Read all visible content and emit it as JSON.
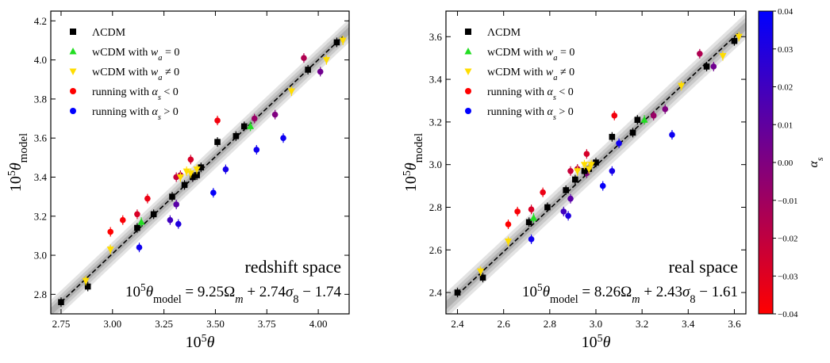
{
  "chart_data": [
    {
      "type": "scatter",
      "panel": "left",
      "space_label": "redshift space",
      "xlabel": "10⁵θ",
      "ylabel": "10⁵θ_model",
      "xlim": [
        2.7,
        4.15
      ],
      "ylim": [
        2.7,
        4.25
      ],
      "xticks": [
        2.75,
        3.0,
        3.25,
        3.5,
        3.75,
        4.0
      ],
      "xtick_labels": [
        "2.75",
        "3.00",
        "3.25",
        "3.50",
        "3.75",
        "4.00"
      ],
      "yticks": [
        2.8,
        3.0,
        3.2,
        3.4,
        3.6,
        3.8,
        4.0,
        4.2
      ],
      "ytick_labels": [
        "2.8",
        "3.0",
        "3.2",
        "3.4",
        "3.6",
        "3.8",
        "4.0",
        "4.2"
      ],
      "fit": {
        "label": "10⁵θ_model = 9.25Ω_m + 2.74σ₈ − 1.74",
        "line": [
          [
            2.75,
            2.76
          ],
          [
            4.12,
            4.12
          ]
        ],
        "band_halfwidths": [
          0.02,
          0.04,
          0.06
        ]
      },
      "series": [
        {
          "name": "ΛCDM",
          "marker": "square",
          "color": "#000000",
          "x": [
            2.75,
            2.88,
            3.12,
            3.2,
            3.29,
            3.35,
            3.39,
            3.41,
            3.43,
            3.51,
            3.6,
            3.64,
            3.95,
            4.09
          ],
          "y": [
            2.76,
            2.84,
            3.14,
            3.21,
            3.3,
            3.36,
            3.4,
            3.41,
            3.45,
            3.58,
            3.61,
            3.66,
            3.95,
            4.09
          ]
        },
        {
          "name": "wCDM with w_a = 0",
          "marker": "triangle-up",
          "color": "#22dd22",
          "x": [
            3.14,
            3.67
          ],
          "y": [
            3.17,
            3.66
          ]
        },
        {
          "name": "wCDM with w_a ≠ 0",
          "marker": "triangle-down",
          "color": "#ffdd00",
          "x": [
            2.87,
            2.99,
            3.33,
            3.36,
            3.38,
            3.41,
            3.87,
            4.04,
            4.12
          ],
          "y": [
            2.87,
            3.03,
            3.4,
            3.43,
            3.42,
            3.44,
            3.84,
            4.0,
            4.1
          ]
        }
      ],
      "running_points": {
        "x": [
          2.99,
          3.05,
          3.12,
          3.17,
          3.31,
          3.33,
          3.38,
          3.51,
          3.69,
          3.93,
          3.79,
          4.01,
          3.13,
          3.28,
          3.32,
          3.31,
          3.39,
          3.49,
          3.55,
          3.7,
          3.83
        ],
        "y": [
          3.12,
          3.18,
          3.21,
          3.29,
          3.4,
          3.41,
          3.49,
          3.69,
          3.7,
          4.01,
          3.72,
          3.94,
          3.04,
          3.18,
          3.16,
          3.26,
          3.4,
          3.32,
          3.44,
          3.54,
          3.6
        ],
        "alpha_s": [
          -0.04,
          -0.038,
          -0.028,
          -0.034,
          -0.022,
          -0.02,
          -0.027,
          -0.036,
          -0.008,
          -0.015,
          0.0,
          0.005,
          0.035,
          0.02,
          0.03,
          0.012,
          0.0,
          0.038,
          0.033,
          0.035,
          0.036
        ]
      }
    },
    {
      "type": "scatter",
      "panel": "right",
      "space_label": "real space",
      "xlabel": "10⁵θ",
      "ylabel": "10⁵θ_model",
      "xlim": [
        2.35,
        3.65
      ],
      "ylim": [
        2.3,
        3.72
      ],
      "xticks": [
        2.4,
        2.6,
        2.8,
        3.0,
        3.2,
        3.4,
        3.6
      ],
      "xtick_labels": [
        "2.4",
        "2.6",
        "2.8",
        "3.0",
        "3.2",
        "3.4",
        "3.6"
      ],
      "yticks": [
        2.4,
        2.6,
        2.8,
        3.0,
        3.2,
        3.4,
        3.6
      ],
      "ytick_labels": [
        "2.4",
        "2.6",
        "2.8",
        "3.0",
        "3.2",
        "3.4",
        "3.6"
      ],
      "fit": {
        "label": "10⁵θ_model = 8.26Ω_m + 2.43σ₈ − 1.61",
        "line": [
          [
            2.4,
            2.39
          ],
          [
            3.62,
            3.62
          ]
        ],
        "band_halfwidths": [
          0.02,
          0.04,
          0.06
        ]
      },
      "series": [
        {
          "name": "ΛCDM",
          "marker": "square",
          "color": "#000000",
          "x": [
            2.4,
            2.51,
            2.71,
            2.79,
            2.87,
            2.91,
            2.95,
            2.97,
            3.0,
            3.07,
            3.16,
            3.18,
            3.48,
            3.6
          ],
          "y": [
            2.4,
            2.47,
            2.73,
            2.8,
            2.88,
            2.93,
            2.97,
            2.98,
            3.01,
            3.13,
            3.15,
            3.21,
            3.46,
            3.58
          ]
        },
        {
          "name": "wCDM with w_a = 0",
          "marker": "triangle-up",
          "color": "#22dd22",
          "x": [
            2.73,
            3.21
          ],
          "y": [
            2.75,
            3.21
          ]
        },
        {
          "name": "wCDM with w_a ≠ 0",
          "marker": "triangle-down",
          "color": "#ffdd00",
          "x": [
            2.5,
            2.62,
            2.92,
            2.95,
            2.97,
            2.98,
            3.37,
            3.55,
            3.62
          ],
          "y": [
            2.5,
            2.64,
            2.97,
            3.0,
            2.98,
            3.0,
            3.37,
            3.51,
            3.6
          ]
        }
      ],
      "running_points": {
        "x": [
          2.62,
          2.66,
          2.72,
          2.77,
          2.89,
          2.92,
          2.96,
          3.08,
          3.25,
          3.45,
          3.3,
          3.51,
          2.72,
          2.86,
          2.88,
          2.89,
          2.96,
          3.03,
          3.07,
          3.1,
          3.33
        ],
        "y": [
          2.72,
          2.78,
          2.79,
          2.87,
          2.97,
          2.98,
          3.05,
          3.23,
          3.23,
          3.52,
          3.26,
          3.46,
          2.65,
          2.78,
          2.76,
          2.84,
          2.96,
          2.9,
          2.97,
          3.1,
          3.14
        ],
        "alpha_s": [
          -0.04,
          -0.038,
          -0.028,
          -0.034,
          -0.022,
          -0.02,
          -0.027,
          -0.036,
          -0.008,
          -0.015,
          0.0,
          0.005,
          0.035,
          0.02,
          0.03,
          0.012,
          0.0,
          0.038,
          0.033,
          0.035,
          0.036
        ]
      }
    }
  ],
  "legend": {
    "lcdm": "ΛCDM",
    "wcdm_prefix": "wCDM with ",
    "wa0_suffix": " = 0",
    "wa_ne_suffix": " ≠ 0",
    "running_prefix": "running with ",
    "lt_suffix": " < 0",
    "gt_suffix": " > 0"
  },
  "colorbar": {
    "label": "α_s",
    "range": [
      -0.04,
      0.04
    ],
    "ticks": [
      0.04,
      0.03,
      0.02,
      0.01,
      0.0,
      -0.01,
      -0.02,
      -0.03,
      -0.04
    ],
    "tick_labels": [
      "0.04",
      "0.03",
      "0.02",
      "0.01",
      "0.00",
      "−0.01",
      "−0.02",
      "−0.03",
      "−0.04"
    ],
    "colors": [
      "#0000ff",
      "#ff0000"
    ]
  }
}
